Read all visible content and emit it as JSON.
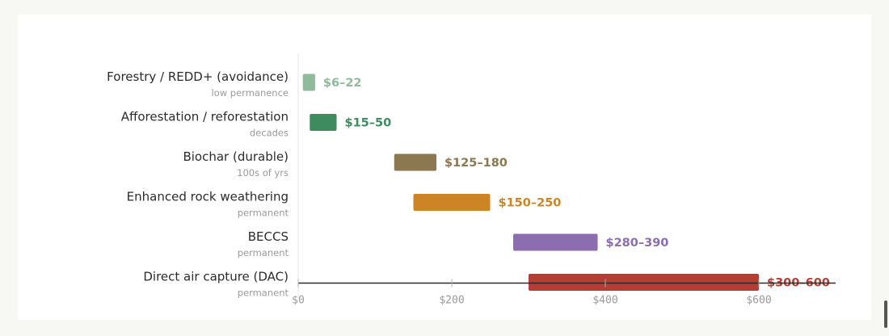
{
  "chart_data": {
    "type": "bar",
    "orientation": "horizontal",
    "subtype": "floating-range",
    "xlim": [
      0,
      700
    ],
    "x_ticks": [
      {
        "value": 0,
        "label": "$0"
      },
      {
        "value": 200,
        "label": "$200"
      },
      {
        "value": 400,
        "label": "$400"
      },
      {
        "value": 600,
        "label": "$600"
      }
    ],
    "categories": [
      {
        "name": "Forestry / REDD+ (avoidance)",
        "note": "low permanence",
        "low": 6,
        "high": 22,
        "label": "$6–22",
        "color": "#8fba9c"
      },
      {
        "name": "Afforestation / reforestation",
        "note": "decades",
        "low": 15,
        "high": 50,
        "label": "$15–50",
        "color": "#3e8b5f"
      },
      {
        "name": "Biochar (durable)",
        "note": "100s of yrs",
        "low": 125,
        "high": 180,
        "label": "$125–180",
        "color": "#8c7850"
      },
      {
        "name": "Enhanced rock weathering",
        "note": "permanent",
        "low": 150,
        "high": 250,
        "label": "$150–250",
        "color": "#cd8424"
      },
      {
        "name": "BECCS",
        "note": "permanent",
        "low": 280,
        "high": 390,
        "label": "$280–390",
        "color": "#8b6db0"
      },
      {
        "name": "Direct air capture (DAC)",
        "note": "permanent",
        "low": 300,
        "high": 600,
        "label": "$300–600",
        "color": "#b53d33"
      }
    ],
    "grid": false,
    "legend": "none",
    "colors": {
      "axis": "#2b2b2b",
      "tick_label": "#9a9a9a",
      "category": "#2b2b2b",
      "note": "#9a9a9a"
    }
  }
}
